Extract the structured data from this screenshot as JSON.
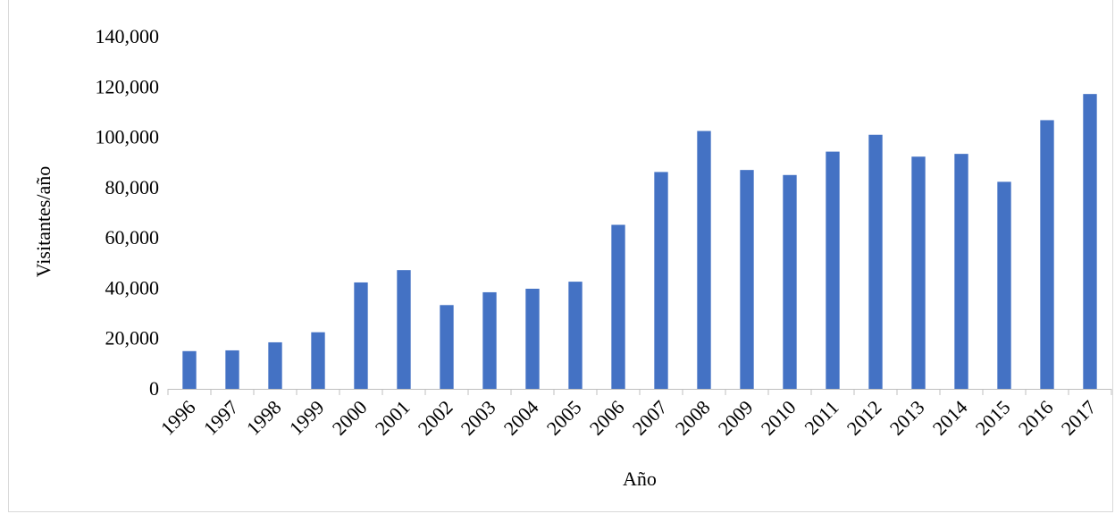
{
  "chart_data": {
    "type": "bar",
    "title": "",
    "xlabel": "Año",
    "ylabel": "Visitantes/año",
    "categories": [
      "1996",
      "1997",
      "1998",
      "1999",
      "2000",
      "2001",
      "2002",
      "2003",
      "2004",
      "2005",
      "2006",
      "2007",
      "2008",
      "2009",
      "2010",
      "2011",
      "2012",
      "2013",
      "2014",
      "2015",
      "2016",
      "2017"
    ],
    "values": [
      15000,
      15300,
      18500,
      22500,
      42300,
      47200,
      33300,
      38400,
      39800,
      42600,
      65200,
      86200,
      102500,
      87000,
      85000,
      94300,
      101000,
      92300,
      93400,
      82300,
      106800,
      117200
    ],
    "ylim": [
      0,
      140000
    ],
    "yticks": [
      0,
      20000,
      40000,
      60000,
      80000,
      100000,
      120000,
      140000
    ],
    "ytick_labels": [
      "0",
      "20,000",
      "40,000",
      "60,000",
      "80,000",
      "100,000",
      "120,000",
      "140,000"
    ],
    "bar_color": "#4472C4",
    "axis_color": "#bfbfbf",
    "grid": false,
    "legend": "none"
  }
}
